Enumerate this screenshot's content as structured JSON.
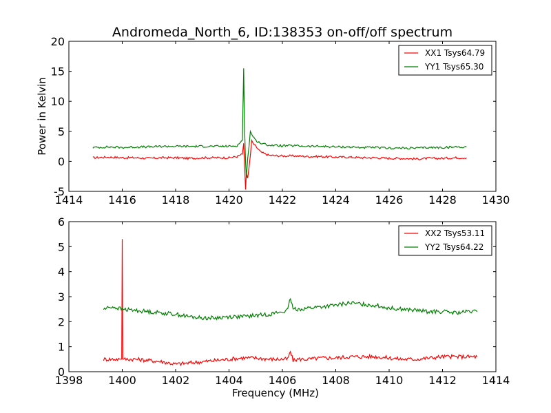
{
  "figure": {
    "title": "Andromeda_North_6, ID:138353 on-off/off spectrum"
  },
  "chart_data": [
    {
      "type": "line",
      "title": "Andromeda_North_6, ID:138353 on-off/off spectrum",
      "xlabel": "",
      "ylabel": "Power in Kelvin",
      "xlim": [
        1414,
        1430
      ],
      "ylim": [
        -5,
        20
      ],
      "xticks": [
        1414,
        1416,
        1418,
        1420,
        1422,
        1424,
        1426,
        1428,
        1430
      ],
      "yticks": [
        -5,
        0,
        5,
        10,
        15,
        20
      ],
      "grid": false,
      "legend_position": "top-right",
      "series": [
        {
          "name": "XX1 Tsys64.79",
          "color": "#ff0000",
          "x": [
            1414.9,
            1415.5,
            1416.0,
            1416.5,
            1417.0,
            1417.5,
            1418.0,
            1418.5,
            1419.0,
            1419.5,
            1420.0,
            1420.3,
            1420.5,
            1420.55,
            1420.6,
            1420.62,
            1420.65,
            1420.7,
            1420.75,
            1420.8,
            1420.85,
            1420.9,
            1421.0,
            1421.2,
            1421.5,
            1422.0,
            1422.5,
            1423.0,
            1423.5,
            1424.0,
            1424.5,
            1425.0,
            1425.5,
            1426.0,
            1426.5,
            1427.0,
            1427.5,
            1428.0,
            1428.5,
            1428.9
          ],
          "y": [
            0.6,
            0.7,
            0.6,
            0.6,
            0.5,
            0.6,
            0.6,
            0.5,
            0.6,
            0.6,
            0.6,
            0.8,
            1.2,
            3.0,
            -2.5,
            -4.7,
            -2.0,
            -2.8,
            -1.0,
            1.0,
            3.5,
            3.0,
            2.5,
            1.5,
            1.0,
            0.9,
            0.9,
            0.8,
            0.8,
            0.7,
            0.7,
            0.6,
            0.6,
            0.5,
            0.5,
            0.4,
            0.5,
            0.5,
            0.6,
            0.6
          ]
        },
        {
          "name": "YY1 Tsys65.30",
          "color": "#007f00",
          "x": [
            1414.9,
            1415.5,
            1416.0,
            1416.5,
            1417.0,
            1417.5,
            1418.0,
            1418.5,
            1419.0,
            1419.5,
            1420.0,
            1420.3,
            1420.5,
            1420.55,
            1420.58,
            1420.62,
            1420.65,
            1420.7,
            1420.75,
            1420.8,
            1420.85,
            1420.9,
            1421.0,
            1421.2,
            1421.5,
            1422.0,
            1422.5,
            1423.0,
            1423.5,
            1424.0,
            1424.5,
            1425.0,
            1425.5,
            1426.0,
            1426.5,
            1427.0,
            1427.5,
            1428.0,
            1428.5,
            1428.9
          ],
          "y": [
            2.3,
            2.4,
            2.3,
            2.4,
            2.4,
            2.5,
            2.5,
            2.5,
            2.5,
            2.5,
            2.5,
            2.6,
            3.5,
            15.5,
            6.0,
            0.0,
            -2.8,
            0.5,
            2.5,
            5.0,
            4.5,
            4.2,
            3.5,
            3.0,
            2.7,
            2.6,
            2.6,
            2.5,
            2.5,
            2.4,
            2.4,
            2.3,
            2.3,
            2.2,
            2.2,
            2.2,
            2.3,
            2.3,
            2.4,
            2.4
          ]
        }
      ]
    },
    {
      "type": "line",
      "title": "",
      "xlabel": "Frequency (MHz)",
      "ylabel": "",
      "xlim": [
        1398,
        1414
      ],
      "ylim": [
        0,
        6
      ],
      "xticks": [
        1398,
        1400,
        1402,
        1404,
        1406,
        1408,
        1410,
        1412,
        1414
      ],
      "yticks": [
        0,
        1,
        2,
        3,
        4,
        5,
        6
      ],
      "grid": false,
      "legend_position": "top-right",
      "series": [
        {
          "name": "XX2 Tsys53.11",
          "color": "#ff0000",
          "x": [
            1399.3,
            1399.6,
            1399.9,
            1399.98,
            1400.0,
            1400.02,
            1400.1,
            1400.5,
            1401.0,
            1401.5,
            1402.0,
            1402.5,
            1403.0,
            1403.5,
            1404.0,
            1404.5,
            1405.0,
            1405.5,
            1406.0,
            1406.2,
            1406.3,
            1406.4,
            1406.6,
            1407.0,
            1407.5,
            1408.0,
            1408.5,
            1409.0,
            1409.5,
            1410.0,
            1410.5,
            1411.0,
            1411.5,
            1412.0,
            1412.5,
            1413.0,
            1413.3
          ],
          "y": [
            0.5,
            0.5,
            0.5,
            0.5,
            5.3,
            0.5,
            0.5,
            0.5,
            0.45,
            0.4,
            0.3,
            0.35,
            0.4,
            0.45,
            0.5,
            0.55,
            0.55,
            0.5,
            0.5,
            0.5,
            0.8,
            0.45,
            0.5,
            0.5,
            0.55,
            0.55,
            0.6,
            0.6,
            0.6,
            0.55,
            0.5,
            0.5,
            0.55,
            0.6,
            0.6,
            0.6,
            0.6
          ]
        },
        {
          "name": "YY2 Tsys64.22",
          "color": "#007f00",
          "x": [
            1399.3,
            1399.6,
            1400.0,
            1400.5,
            1401.0,
            1401.5,
            1402.0,
            1402.5,
            1403.0,
            1403.5,
            1404.0,
            1404.5,
            1405.0,
            1405.5,
            1406.0,
            1406.2,
            1406.3,
            1406.4,
            1406.6,
            1407.0,
            1407.5,
            1408.0,
            1408.5,
            1409.0,
            1409.5,
            1410.0,
            1410.5,
            1411.0,
            1411.5,
            1412.0,
            1412.5,
            1413.0,
            1413.3
          ],
          "y": [
            2.5,
            2.6,
            2.5,
            2.45,
            2.4,
            2.35,
            2.3,
            2.2,
            2.15,
            2.15,
            2.2,
            2.2,
            2.25,
            2.3,
            2.4,
            2.45,
            2.95,
            2.5,
            2.5,
            2.55,
            2.6,
            2.65,
            2.75,
            2.7,
            2.65,
            2.55,
            2.5,
            2.45,
            2.4,
            2.4,
            2.35,
            2.4,
            2.4
          ]
        }
      ]
    }
  ]
}
